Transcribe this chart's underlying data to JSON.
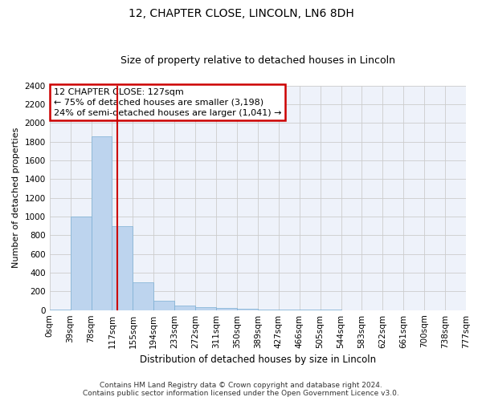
{
  "title": "12, CHAPTER CLOSE, LINCOLN, LN6 8DH",
  "subtitle": "Size of property relative to detached houses in Lincoln",
  "xlabel": "Distribution of detached houses by size in Lincoln",
  "ylabel": "Number of detached properties",
  "footer_line1": "Contains HM Land Registry data © Crown copyright and database right 2024.",
  "footer_line2": "Contains public sector information licensed under the Open Government Licence v3.0.",
  "annotation_line1": "12 CHAPTER CLOSE: 127sqm",
  "annotation_line2": "← 75% of detached houses are smaller (3,198)",
  "annotation_line3": "24% of semi-detached houses are larger (1,041) →",
  "bar_values": [
    10,
    1000,
    1860,
    900,
    300,
    100,
    45,
    30,
    20,
    15,
    5,
    3,
    2,
    2,
    1,
    1,
    1,
    0,
    0,
    0
  ],
  "x_labels": [
    "0sqm",
    "39sqm",
    "78sqm",
    "117sqm",
    "155sqm",
    "194sqm",
    "233sqm",
    "272sqm",
    "311sqm",
    "350sqm",
    "389sqm",
    "427sqm",
    "466sqm",
    "505sqm",
    "544sqm",
    "583sqm",
    "622sqm",
    "661sqm",
    "700sqm",
    "738sqm",
    "777sqm"
  ],
  "bar_color": "#bdd4ee",
  "bar_edge_color": "#7bafd4",
  "grid_color": "#cccccc",
  "bg_color": "#eef2fa",
  "vline_color": "#cc0000",
  "annotation_box_color": "#cc0000",
  "ylim": [
    0,
    2400
  ],
  "yticks": [
    0,
    200,
    400,
    600,
    800,
    1000,
    1200,
    1400,
    1600,
    1800,
    2000,
    2200,
    2400
  ],
  "title_fontsize": 10,
  "subtitle_fontsize": 9,
  "xlabel_fontsize": 8.5,
  "ylabel_fontsize": 8,
  "tick_fontsize": 7.5,
  "annot_fontsize": 8,
  "footer_fontsize": 6.5
}
